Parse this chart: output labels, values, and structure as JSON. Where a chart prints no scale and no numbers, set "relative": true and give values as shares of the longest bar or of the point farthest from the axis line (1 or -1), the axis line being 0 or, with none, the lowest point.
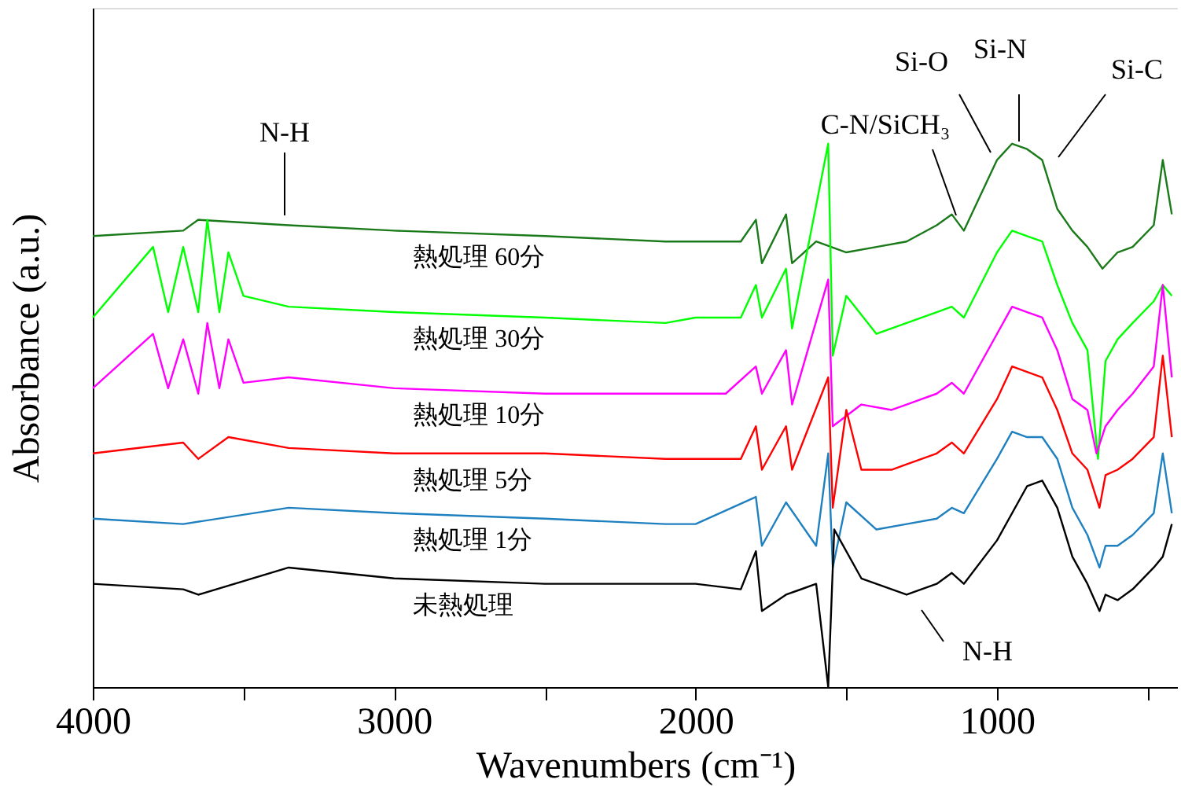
{
  "chart_data": {
    "type": "line",
    "relative": true,
    "xlabel": "Wavenumbers (cm⁻¹)",
    "ylabel": "Absorbance (a.u.)",
    "grid": false,
    "legend": false,
    "marker": "none",
    "line_style": "solid",
    "xlim": [
      4000,
      400
    ],
    "xticks": [
      4000,
      {
        "value": 3500,
        "label": null
      },
      3000,
      {
        "value": 2500,
        "label": null
      },
      2000,
      {
        "value": 1500,
        "label": null
      },
      1000,
      {
        "value": 500,
        "label": null
      }
    ],
    "series": [
      {
        "name": "熱処理 60分",
        "color": "#1a7a1a",
        "x": [
          4000,
          3700,
          3650,
          3350,
          3000,
          2500,
          2100,
          2000,
          1850,
          1800,
          1780,
          1700,
          1680,
          1600,
          1500,
          1400,
          1300,
          1200,
          1150,
          1110,
          1000,
          950,
          900,
          850,
          800,
          750,
          700,
          650,
          600,
          550,
          480,
          450,
          420
        ],
        "values": [
          0.83,
          0.84,
          0.86,
          0.85,
          0.84,
          0.83,
          0.82,
          0.82,
          0.82,
          0.86,
          0.78,
          0.87,
          0.78,
          0.82,
          0.8,
          0.81,
          0.82,
          0.85,
          0.87,
          0.84,
          0.97,
          1.0,
          0.99,
          0.97,
          0.88,
          0.84,
          0.81,
          0.77,
          0.8,
          0.81,
          0.85,
          0.97,
          0.87
        ]
      },
      {
        "name": "熱処理 30分",
        "color": "#00ff00",
        "x": [
          4000,
          3800,
          3750,
          3700,
          3650,
          3620,
          3580,
          3550,
          3500,
          3350,
          3000,
          2500,
          2100,
          2000,
          1850,
          1800,
          1780,
          1700,
          1680,
          1560,
          1545,
          1500,
          1400,
          1300,
          1200,
          1150,
          1110,
          1000,
          950,
          900,
          850,
          800,
          750,
          700,
          665,
          640,
          600,
          550,
          480,
          450,
          420
        ],
        "values": [
          0.68,
          0.81,
          0.69,
          0.81,
          0.69,
          0.86,
          0.69,
          0.8,
          0.72,
          0.7,
          0.69,
          0.68,
          0.67,
          0.68,
          0.68,
          0.74,
          0.68,
          0.77,
          0.66,
          1.0,
          0.61,
          0.72,
          0.65,
          0.67,
          0.69,
          0.7,
          0.68,
          0.8,
          0.84,
          0.83,
          0.82,
          0.74,
          0.67,
          0.62,
          0.42,
          0.6,
          0.64,
          0.67,
          0.71,
          0.74,
          0.72
        ]
      },
      {
        "name": "熱処理 10分",
        "color": "#ff00ff",
        "x": [
          4000,
          3800,
          3750,
          3700,
          3650,
          3620,
          3580,
          3550,
          3500,
          3350,
          3000,
          2500,
          2100,
          2000,
          1900,
          1800,
          1780,
          1700,
          1680,
          1560,
          1545,
          1450,
          1350,
          1300,
          1200,
          1150,
          1110,
          1000,
          950,
          900,
          850,
          800,
          750,
          700,
          670,
          640,
          600,
          550,
          480,
          450,
          420
        ],
        "values": [
          0.55,
          0.65,
          0.55,
          0.64,
          0.54,
          0.67,
          0.55,
          0.64,
          0.56,
          0.57,
          0.55,
          0.54,
          0.54,
          0.54,
          0.54,
          0.59,
          0.54,
          0.62,
          0.52,
          0.75,
          0.48,
          0.52,
          0.51,
          0.52,
          0.54,
          0.56,
          0.54,
          0.65,
          0.7,
          0.69,
          0.68,
          0.62,
          0.53,
          0.51,
          0.43,
          0.48,
          0.51,
          0.54,
          0.59,
          0.74,
          0.57
        ]
      },
      {
        "name": "熱処理  5分",
        "color": "#ff0000",
        "x": [
          4000,
          3700,
          3650,
          3550,
          3350,
          3000,
          2500,
          2100,
          2000,
          1850,
          1800,
          1780,
          1700,
          1680,
          1560,
          1545,
          1500,
          1450,
          1350,
          1300,
          1200,
          1150,
          1110,
          1000,
          950,
          900,
          850,
          800,
          750,
          700,
          660,
          640,
          600,
          550,
          480,
          450,
          420
        ],
        "values": [
          0.43,
          0.45,
          0.42,
          0.46,
          0.44,
          0.43,
          0.43,
          0.42,
          0.42,
          0.42,
          0.48,
          0.4,
          0.48,
          0.4,
          0.57,
          0.33,
          0.51,
          0.4,
          0.4,
          0.41,
          0.43,
          0.45,
          0.43,
          0.53,
          0.59,
          0.58,
          0.57,
          0.51,
          0.43,
          0.4,
          0.33,
          0.39,
          0.4,
          0.42,
          0.46,
          0.61,
          0.46
        ]
      },
      {
        "name": "熱処理  1分",
        "color": "#1f80c0",
        "x": [
          4000,
          3700,
          3350,
          3000,
          2500,
          2100,
          2000,
          1800,
          1780,
          1700,
          1600,
          1560,
          1545,
          1500,
          1400,
          1300,
          1200,
          1150,
          1110,
          1000,
          950,
          900,
          850,
          800,
          750,
          700,
          660,
          640,
          600,
          550,
          480,
          450,
          420
        ],
        "values": [
          0.31,
          0.3,
          0.33,
          0.32,
          0.31,
          0.3,
          0.3,
          0.35,
          0.26,
          0.34,
          0.26,
          0.43,
          0.22,
          0.34,
          0.29,
          0.3,
          0.31,
          0.33,
          0.32,
          0.42,
          0.47,
          0.46,
          0.46,
          0.42,
          0.33,
          0.28,
          0.22,
          0.26,
          0.26,
          0.28,
          0.32,
          0.43,
          0.32
        ]
      },
      {
        "name": "未熱処理",
        "color": "#000000",
        "x": [
          4000,
          3700,
          3650,
          3350,
          3000,
          2500,
          2200,
          2000,
          1850,
          1800,
          1780,
          1700,
          1600,
          1560,
          1540,
          1450,
          1300,
          1200,
          1150,
          1110,
          1000,
          900,
          850,
          800,
          750,
          700,
          660,
          640,
          600,
          550,
          480,
          450,
          420
        ],
        "values": [
          0.19,
          0.18,
          0.17,
          0.22,
          0.2,
          0.19,
          0.19,
          0.19,
          0.18,
          0.25,
          0.14,
          0.17,
          0.19,
          0.0,
          0.29,
          0.2,
          0.17,
          0.19,
          0.21,
          0.19,
          0.27,
          0.37,
          0.38,
          0.33,
          0.24,
          0.19,
          0.14,
          0.17,
          0.16,
          0.18,
          0.22,
          0.24,
          0.3
        ]
      }
    ],
    "annotations": [
      "N-H",
      "C-N/SiCH₃",
      "Si-O",
      "Si-N",
      "Si-C",
      "N-H"
    ]
  }
}
